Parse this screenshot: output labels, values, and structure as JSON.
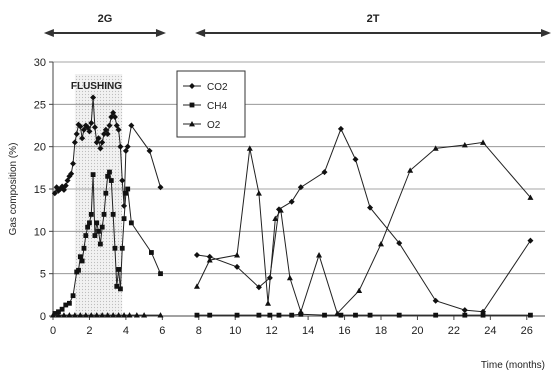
{
  "chart_data": {
    "type": "line",
    "xlabel": "Time (months)",
    "ylabel": "Gas composition (%)",
    "xlim": [
      0,
      27
    ],
    "ylim": [
      0,
      30
    ],
    "x_ticks": [
      0,
      2,
      4,
      6,
      8,
      10,
      12,
      14,
      16,
      18,
      20,
      22,
      24,
      26
    ],
    "y_ticks": [
      0,
      5,
      10,
      15,
      20,
      25,
      30
    ],
    "grid": "horizontal",
    "legend_position": "top-center",
    "phases": [
      {
        "label": "2G",
        "from": -0.5,
        "to": 6.2
      },
      {
        "label": "2T",
        "from": 7.8,
        "to": 27.5
      }
    ],
    "annotations": [
      {
        "text": "FLUSHING",
        "x_from": 1.2,
        "x_to": 3.8
      }
    ],
    "series": [
      {
        "name": "CO2",
        "marker": "diamond",
        "segments": [
          {
            "x": [
              0.1,
              0.2,
              0.3,
              0.4,
              0.5,
              0.6,
              0.7,
              0.8,
              0.9,
              1.0,
              1.1,
              1.2,
              1.3,
              1.4,
              1.5,
              1.6,
              1.7,
              1.8,
              1.9,
              2.0,
              2.1,
              2.2,
              2.3,
              2.4,
              2.5,
              2.6,
              2.7,
              2.8,
              2.9,
              3.0,
              3.1,
              3.2,
              3.3,
              3.4,
              3.5,
              3.6,
              3.7,
              3.8,
              3.9,
              4.0,
              4.1,
              4.3,
              5.3,
              5.9
            ],
            "y": [
              14.5,
              15.2,
              14.8,
              15.0,
              15.3,
              14.9,
              15.4,
              16.0,
              16.5,
              16.8,
              18.0,
              20.5,
              21.5,
              22.6,
              22.4,
              21.0,
              22.0,
              22.5,
              22.3,
              21.8,
              22.8,
              25.8,
              22.3,
              20.5,
              21.0,
              19.8,
              20.5,
              21.5,
              22.0,
              21.5,
              22.5,
              23.5,
              24.0,
              23.5,
              22.5,
              22.0,
              20.0,
              16.0,
              13.0,
              19.5,
              20.0,
              22.5,
              19.5,
              15.2
            ]
          },
          {
            "x": [
              7.9,
              8.6,
              10.1,
              11.3,
              11.9,
              12.4,
              13.1,
              13.6,
              14.9,
              15.8,
              16.6,
              17.4,
              19.0,
              21.0,
              22.6,
              23.6,
              26.2
            ],
            "y": [
              7.2,
              7.0,
              5.8,
              3.4,
              4.5,
              12.6,
              13.5,
              15.2,
              17.0,
              22.1,
              18.5,
              12.8,
              8.6,
              1.8,
              0.7,
              0.5,
              8.9
            ]
          }
        ]
      },
      {
        "name": "CH4",
        "marker": "square",
        "segments": [
          {
            "x": [
              0.1,
              0.3,
              0.5,
              0.7,
              0.9,
              1.1,
              1.3,
              1.4,
              1.5,
              1.6,
              1.7,
              1.8,
              1.9,
              2.0,
              2.1,
              2.2,
              2.3,
              2.4,
              2.5,
              2.6,
              2.7,
              2.8,
              2.9,
              3.0,
              3.1,
              3.2,
              3.3,
              3.4,
              3.5,
              3.6,
              3.7,
              3.8,
              3.9,
              4.0,
              4.1,
              4.3,
              5.4,
              5.9
            ],
            "y": [
              0.3,
              0.5,
              0.8,
              1.3,
              1.5,
              2.4,
              5.2,
              5.4,
              7.0,
              6.5,
              8.0,
              9.5,
              10.5,
              11.0,
              12.0,
              16.7,
              9.5,
              11.0,
              10.0,
              8.5,
              10.5,
              12.0,
              14.5,
              16.5,
              17.0,
              16.0,
              12.0,
              8.0,
              3.5,
              5.5,
              3.2,
              8.0,
              11.5,
              14.5,
              15.0,
              11.0,
              7.5,
              5.0
            ]
          },
          {
            "x": [
              7.9,
              8.6,
              10.1,
              11.3,
              11.9,
              12.4,
              13.1,
              13.6,
              14.9,
              15.8,
              16.6,
              17.4,
              19.0,
              21.0,
              22.6,
              23.6,
              26.2
            ],
            "y": [
              0.1,
              0.1,
              0.1,
              0.1,
              0.1,
              0.1,
              0.1,
              0.2,
              0.1,
              0.1,
              0.1,
              0.1,
              0.1,
              0.1,
              0.1,
              0.1,
              0.1
            ]
          }
        ]
      },
      {
        "name": "O2",
        "marker": "triangle",
        "segments": [
          {
            "x": [
              0.0,
              0.3,
              0.6,
              0.9,
              1.2,
              1.5,
              1.8,
              2.1,
              2.4,
              2.7,
              3.0,
              3.3,
              3.6,
              3.9,
              4.2,
              4.6,
              5.0,
              5.9
            ],
            "y": [
              0.1,
              0.1,
              0.1,
              0.1,
              0.1,
              0.1,
              0.1,
              0.1,
              0.1,
              0.1,
              0.1,
              0.1,
              0.1,
              0.1,
              0.1,
              0.1,
              0.1,
              0.1
            ]
          },
          {
            "x": [
              7.9,
              8.6,
              10.1,
              10.8,
              11.3,
              11.8,
              12.2,
              12.5,
              13.0,
              13.6,
              14.6,
              15.6,
              16.8,
              18.0,
              19.6,
              21.0,
              22.6,
              23.6,
              26.2
            ],
            "y": [
              3.5,
              6.6,
              7.2,
              19.8,
              14.5,
              1.5,
              11.5,
              12.5,
              4.5,
              0.5,
              7.2,
              0.3,
              3.0,
              8.5,
              17.2,
              19.8,
              20.2,
              20.5,
              14.0
            ]
          }
        ]
      }
    ]
  }
}
